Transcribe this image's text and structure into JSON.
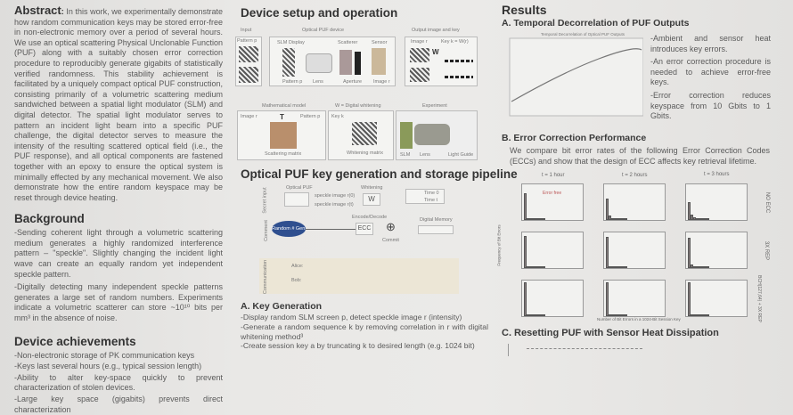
{
  "abstract": {
    "heading": "Abstract",
    "text": "In this work, we experimentally demonstrate how random communication keys may be stored error-free in non-electronic memory over a period of several hours. We use an optical scattering Physical Unclonable Function (PUF) along with a suitably chosen error correction procedure to reproducibly generate gigabits of statistically verified randomness. This stability achievement is facilitated by a uniquely compact optical PUF construction, consisting primarily of a volumetric scattering medium sandwiched between a spatial light modulator (SLM) and digital detector. The spatial light modulator serves to pattern an incident light beam into a specific PUF challenge, the digital detector serves to measure the intensity of the resulting scattered optical field (i.e., the PUF response), and all optical components are fastened together with an epoxy to ensure the optical system is minimally effected by any mechanical movement. We also demonstrate how the entire random keyspace may be reset through device heating."
  },
  "background": {
    "heading": "Background",
    "items": [
      "-Sending coherent light through a volumetric scattering medium generates a highly randomized interference pattern – \"speckle\". Slightly changing the incident light wave can create an equally random yet independent speckle pattern.",
      "-Digitally detecting many independent speckle patterns generates a large set of random numbers. Experiments indicate a volumetric scatterer can store ~10¹⁰ bits per mm³ in the absence of noise."
    ]
  },
  "achievements": {
    "heading": "Device achievements",
    "items": [
      "-Non-electronic storage of PK communication keys",
      "-Keys last several hours (e.g., typical session length)",
      "-Ability to alter key-space quickly to prevent characterization of stolen devices.",
      "-Large key space (gigabits) prevents direct characterization"
    ]
  },
  "setup": {
    "heading": "Device setup and operation",
    "input": "Input",
    "pattern": "Pattern p",
    "device": "Optical PUF device",
    "slm": "SLM Display",
    "scatterer": "Scatterer",
    "sensor": "Sensor",
    "lens": "Lens",
    "aperture": "Aperture",
    "image": "Image r",
    "output": "Output image and key",
    "key": "Key k = W(r)",
    "w": "W",
    "math": "Mathematical model",
    "whiten": "W = Digital whitening",
    "experiment": "Experiment",
    "scattering_matrix": "Scattering matrix",
    "whitening_matrix": "Whitening matrix",
    "T": "T",
    "light_guide": "Light Guide",
    "slm_short": "SLM",
    "key_short": "Key k"
  },
  "pipeline": {
    "heading": "Optical PUF key generation and storage pipeline",
    "optical_puf": "Optical PUF",
    "whitening": "Whitening",
    "speckle0": "speckle image r(0)",
    "specklet": "speckle image r(t)",
    "rng": "Random # Gen.",
    "encode": "Encode/Decode",
    "ecc": "ECC",
    "commit": "Commit",
    "memory": "Digital Memory",
    "alice": "Alice:",
    "bob": "Bob:",
    "time0": "Time 0",
    "timet": "Time t",
    "row1": "Secret input",
    "row2": "Comment",
    "row3": "Communication"
  },
  "keygen": {
    "heading": "A. Key Generation",
    "items": [
      "-Display random SLM screen p, detect speckle image r (intensity)",
      "-Generate a random sequence k by removing correlation in r with digital whitening method³",
      "-Create session key a by truncating k to desired length (e.g. 1024 bit)"
    ]
  },
  "results": {
    "heading": "Results",
    "a_heading": "A. Temporal Decorrelation of PUF Outputs",
    "a_chart_title": "Temporal Decorrelation of Optical PUF Outputs",
    "a_items": [
      "-Ambient and sensor heat introduces key errors.",
      "-An error correction procedure is needed to achieve error-free keys.",
      "-Error correction reduces keyspace from 10 Gbits to 1 Gbits."
    ],
    "b_heading": "B. Error Correction Performance",
    "b_text": "We compare bit error rates of the following Error Correction Codes (ECCs) and show that the design of ECC affects key retrieval lifetime.",
    "cols": [
      "t = 1 hour",
      "t = 2 hours",
      "t = 3 hours"
    ],
    "rows": [
      "NO ECC",
      "3X REP",
      "BCH(127,64) + 3X REP"
    ],
    "error_free": "Error free",
    "ylabel": "Frequency of Bit Errors",
    "xlabel": "Number of Bit Errors in a 1024-Bit Session Key",
    "c_heading": "C. Resetting PUF with Sensor Heat Dissipation"
  },
  "chart_data": {
    "type": "bar",
    "hist": [
      [
        [
          80,
          4,
          1,
          1,
          0,
          1,
          0,
          0
        ],
        [
          62,
          12,
          5,
          2,
          1,
          1,
          1,
          0
        ],
        [
          52,
          15,
          8,
          5,
          3,
          2,
          2,
          1
        ]
      ],
      [
        [
          95,
          5,
          2,
          0,
          0,
          0,
          0,
          0
        ],
        [
          93,
          6,
          2,
          0,
          0,
          0,
          0,
          0
        ],
        [
          90,
          10,
          3,
          0,
          0,
          0,
          0,
          0
        ]
      ],
      [
        [
          100,
          0,
          0,
          0,
          0,
          0,
          0,
          0
        ],
        [
          100,
          0,
          0,
          0,
          0,
          0,
          0,
          0
        ],
        [
          100,
          0,
          0,
          0,
          0,
          0,
          0,
          0
        ]
      ]
    ]
  }
}
